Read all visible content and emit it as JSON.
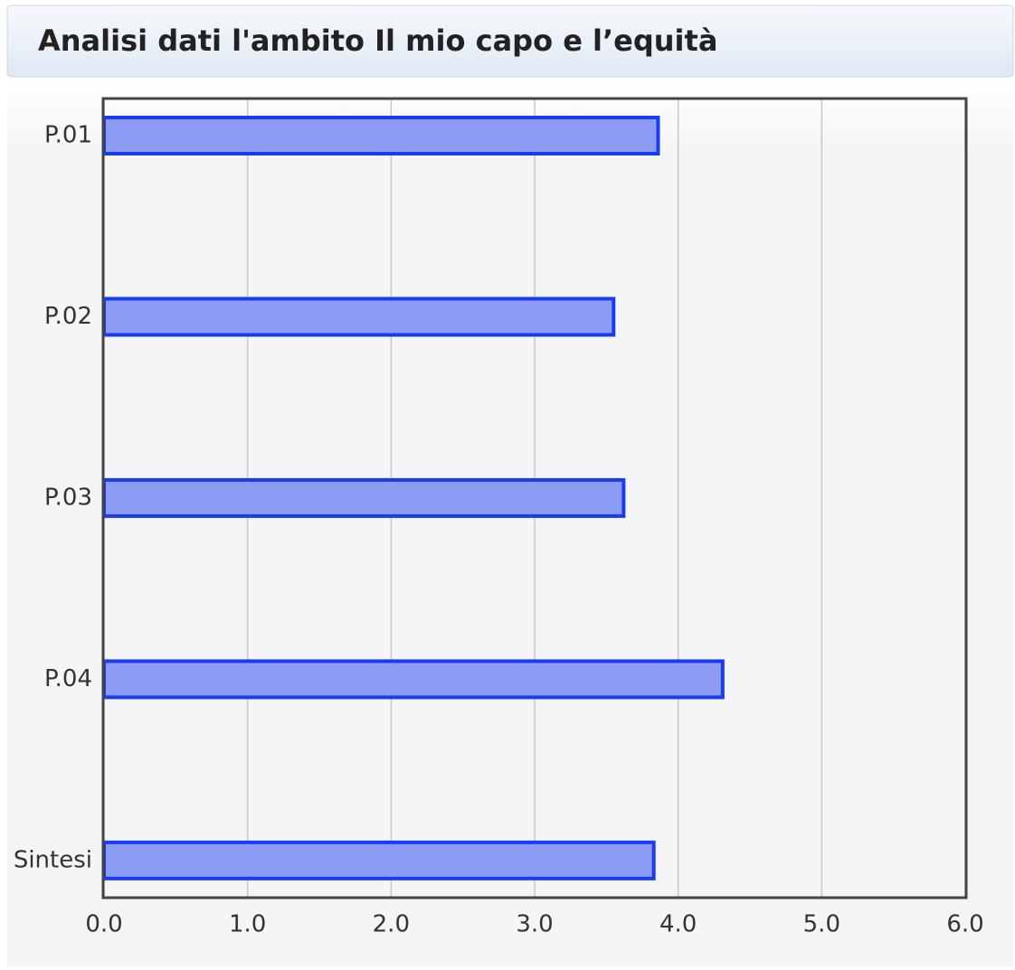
{
  "chart_data": {
    "type": "bar",
    "orientation": "horizontal",
    "title": "Analisi dati l'ambito Il mio capo e l’equità",
    "categories": [
      "P.01",
      "P.02",
      "P.03",
      "P.04",
      "Sintesi"
    ],
    "values": [
      3.86,
      3.55,
      3.62,
      4.31,
      3.83
    ],
    "color": "#8c9cf5",
    "xlim": [
      0,
      6
    ],
    "xticks": [
      {
        "value": 0,
        "label": "0.0"
      },
      {
        "value": 1,
        "label": "1.0"
      },
      {
        "value": 2,
        "label": "2.0"
      },
      {
        "value": 3,
        "label": "3.0"
      },
      {
        "value": 4,
        "label": "4.0"
      },
      {
        "value": 5,
        "label": "5.0"
      },
      {
        "value": 6,
        "label": "6.0"
      }
    ],
    "grid": true
  }
}
